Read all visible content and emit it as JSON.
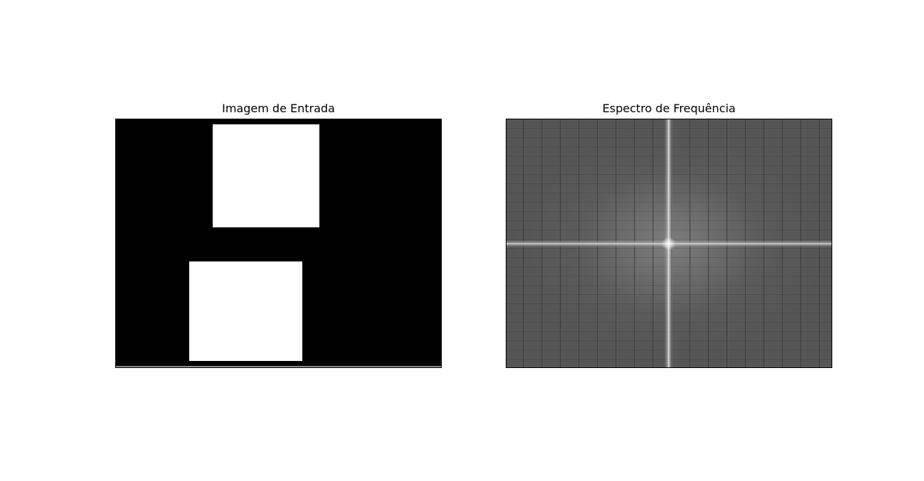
{
  "panels": [
    {
      "title": "Imagem de Entrada"
    },
    {
      "title": "Espectro de Frequência"
    }
  ]
}
